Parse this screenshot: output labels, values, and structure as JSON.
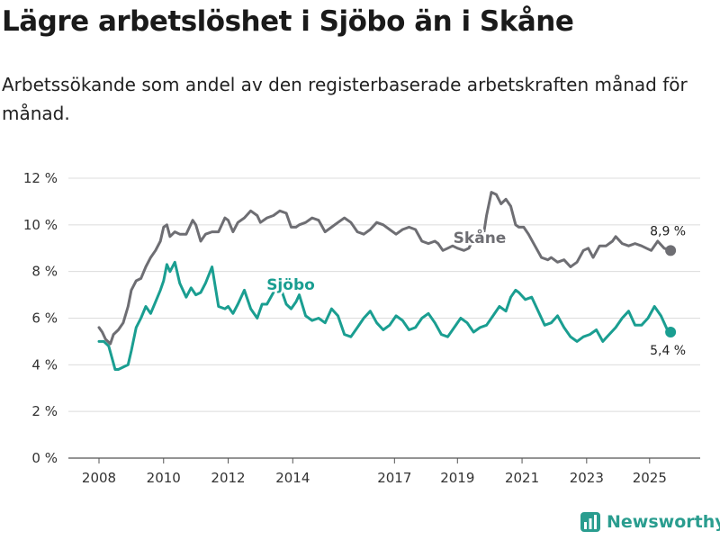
{
  "chart_data": {
    "type": "line",
    "title": "Lägre arbetslöshet i Sjöbo än i Skåne",
    "subtitle": "Arbetssökande som andel av den registerbaserade arbetskraften månad för månad.",
    "xlabel": "",
    "ylabel": "",
    "ylim": [
      0,
      12
    ],
    "y_ticks": [
      "0 %",
      "2 %",
      "4 %",
      "6 %",
      "8 %",
      "10 %",
      "12 %"
    ],
    "x_ticks": [
      "2008",
      "2010",
      "2012",
      "2014",
      "2017",
      "2019",
      "2021",
      "2023",
      "2025"
    ],
    "grid": true,
    "x_domain": [
      2008.0,
      2026.0
    ],
    "series": [
      {
        "name": "Skåne",
        "color": "#6e6e73",
        "end_label": "8,9 %",
        "x": [
          2008.0,
          2008.1,
          2008.2,
          2008.35,
          2008.45,
          2008.6,
          2008.75,
          2008.9,
          2009.0,
          2009.15,
          2009.3,
          2009.45,
          2009.6,
          2009.75,
          2009.9,
          2010.0,
          2010.1,
          2010.2,
          2010.35,
          2010.5,
          2010.7,
          2010.9,
          2011.0,
          2011.15,
          2011.3,
          2011.5,
          2011.7,
          2011.9,
          2012.0,
          2012.15,
          2012.3,
          2012.5,
          2012.7,
          2012.9,
          2013.0,
          2013.2,
          2013.4,
          2013.6,
          2013.8,
          2013.95,
          2014.1,
          2014.2,
          2014.4,
          2014.6,
          2014.8,
          2015.0,
          2015.2,
          2015.4,
          2015.6,
          2015.8,
          2016.0,
          2016.2,
          2016.4,
          2016.6,
          2016.8,
          2017.0,
          2017.2,
          2017.4,
          2017.6,
          2017.8,
          2018.0,
          2018.2,
          2018.4,
          2018.5,
          2018.65,
          2018.8,
          2018.95,
          2019.1,
          2019.3,
          2019.45,
          2019.6,
          2019.75,
          2019.9,
          2020.0,
          2020.15,
          2020.3,
          2020.45,
          2020.6,
          2020.75,
          2020.9,
          2021.0,
          2021.15,
          2021.3,
          2021.5,
          2021.7,
          2021.9,
          2022.0,
          2022.2,
          2022.4,
          2022.6,
          2022.8,
          2023.0,
          2023.15,
          2023.3,
          2023.5,
          2023.7,
          2023.9,
          2024.0,
          2024.2,
          2024.4,
          2024.6,
          2024.8,
          2024.95,
          2025.1,
          2025.3,
          2025.5,
          2025.7
        ],
        "values": [
          5.6,
          5.4,
          5.1,
          4.9,
          5.3,
          5.5,
          5.8,
          6.5,
          7.2,
          7.6,
          7.7,
          8.2,
          8.6,
          8.9,
          9.3,
          9.9,
          10.0,
          9.5,
          9.7,
          9.6,
          9.6,
          10.2,
          10.0,
          9.3,
          9.6,
          9.7,
          9.7,
          10.3,
          10.2,
          9.7,
          10.1,
          10.3,
          10.6,
          10.4,
          10.1,
          10.3,
          10.4,
          10.6,
          10.5,
          9.9,
          9.9,
          10.0,
          10.1,
          10.3,
          10.2,
          9.7,
          9.9,
          10.1,
          10.3,
          10.1,
          9.7,
          9.6,
          9.8,
          10.1,
          10.0,
          9.8,
          9.6,
          9.8,
          9.9,
          9.8,
          9.3,
          9.2,
          9.3,
          9.2,
          8.9,
          9.0,
          9.1,
          9.0,
          8.9,
          9.0,
          9.4,
          9.6,
          9.5,
          10.4,
          11.4,
          11.3,
          10.9,
          11.1,
          10.8,
          10.0,
          9.9,
          9.9,
          9.6,
          9.1,
          8.6,
          8.5,
          8.6,
          8.4,
          8.5,
          8.2,
          8.4,
          8.9,
          9.0,
          8.6,
          9.1,
          9.1,
          9.3,
          9.5,
          9.2,
          9.1,
          9.2,
          9.1,
          9.0,
          8.9,
          9.3,
          9.0,
          8.9
        ]
      },
      {
        "name": "Sjöbo",
        "color": "#1a9e91",
        "end_label": "5,4 %",
        "x": [
          2008.0,
          2008.15,
          2008.3,
          2008.4,
          2008.5,
          2008.6,
          2008.75,
          2008.9,
          2009.0,
          2009.15,
          2009.3,
          2009.45,
          2009.6,
          2009.75,
          2009.9,
          2010.0,
          2010.1,
          2010.2,
          2010.35,
          2010.5,
          2010.7,
          2010.85,
          2011.0,
          2011.15,
          2011.3,
          2011.5,
          2011.7,
          2011.9,
          2012.0,
          2012.15,
          2012.3,
          2012.5,
          2012.7,
          2012.9,
          2013.05,
          2013.2,
          2013.4,
          2013.6,
          2013.8,
          2013.95,
          2014.1,
          2014.2,
          2014.4,
          2014.6,
          2014.8,
          2015.0,
          2015.2,
          2015.4,
          2015.6,
          2015.8,
          2016.0,
          2016.2,
          2016.4,
          2016.6,
          2016.8,
          2017.0,
          2017.2,
          2017.4,
          2017.6,
          2017.8,
          2018.0,
          2018.2,
          2018.4,
          2018.6,
          2018.8,
          2019.0,
          2019.2,
          2019.4,
          2019.6,
          2019.8,
          2020.0,
          2020.2,
          2020.4,
          2020.6,
          2020.75,
          2020.9,
          2021.0,
          2021.2,
          2021.4,
          2021.6,
          2021.8,
          2022.0,
          2022.2,
          2022.4,
          2022.6,
          2022.8,
          2023.0,
          2023.2,
          2023.4,
          2023.6,
          2023.8,
          2024.0,
          2024.2,
          2024.4,
          2024.6,
          2024.8,
          2025.0,
          2025.2,
          2025.4,
          2025.6,
          2025.7
        ],
        "values": [
          5.0,
          5.0,
          4.8,
          4.3,
          3.8,
          3.8,
          3.9,
          4.0,
          4.6,
          5.6,
          6.0,
          6.5,
          6.2,
          6.7,
          7.2,
          7.6,
          8.3,
          8.0,
          8.4,
          7.5,
          6.9,
          7.3,
          7.0,
          7.1,
          7.5,
          8.2,
          6.5,
          6.4,
          6.5,
          6.2,
          6.6,
          7.2,
          6.4,
          6.0,
          6.6,
          6.6,
          7.1,
          7.4,
          6.6,
          6.4,
          6.7,
          7.0,
          6.1,
          5.9,
          6.0,
          5.8,
          6.4,
          6.1,
          5.3,
          5.2,
          5.6,
          6.0,
          6.3,
          5.8,
          5.5,
          5.7,
          6.1,
          5.9,
          5.5,
          5.6,
          6.0,
          6.2,
          5.8,
          5.3,
          5.2,
          5.6,
          6.0,
          5.8,
          5.4,
          5.6,
          5.7,
          6.1,
          6.5,
          6.3,
          6.9,
          7.2,
          7.1,
          6.8,
          6.9,
          6.3,
          5.7,
          5.8,
          6.1,
          5.6,
          5.2,
          5.0,
          5.2,
          5.3,
          5.5,
          5.0,
          5.3,
          5.6,
          6.0,
          6.3,
          5.7,
          5.7,
          6.0,
          6.5,
          6.1,
          5.5,
          5.4
        ]
      }
    ]
  },
  "brand": {
    "name": "Newsworthy",
    "color": "#2a9d8f"
  }
}
